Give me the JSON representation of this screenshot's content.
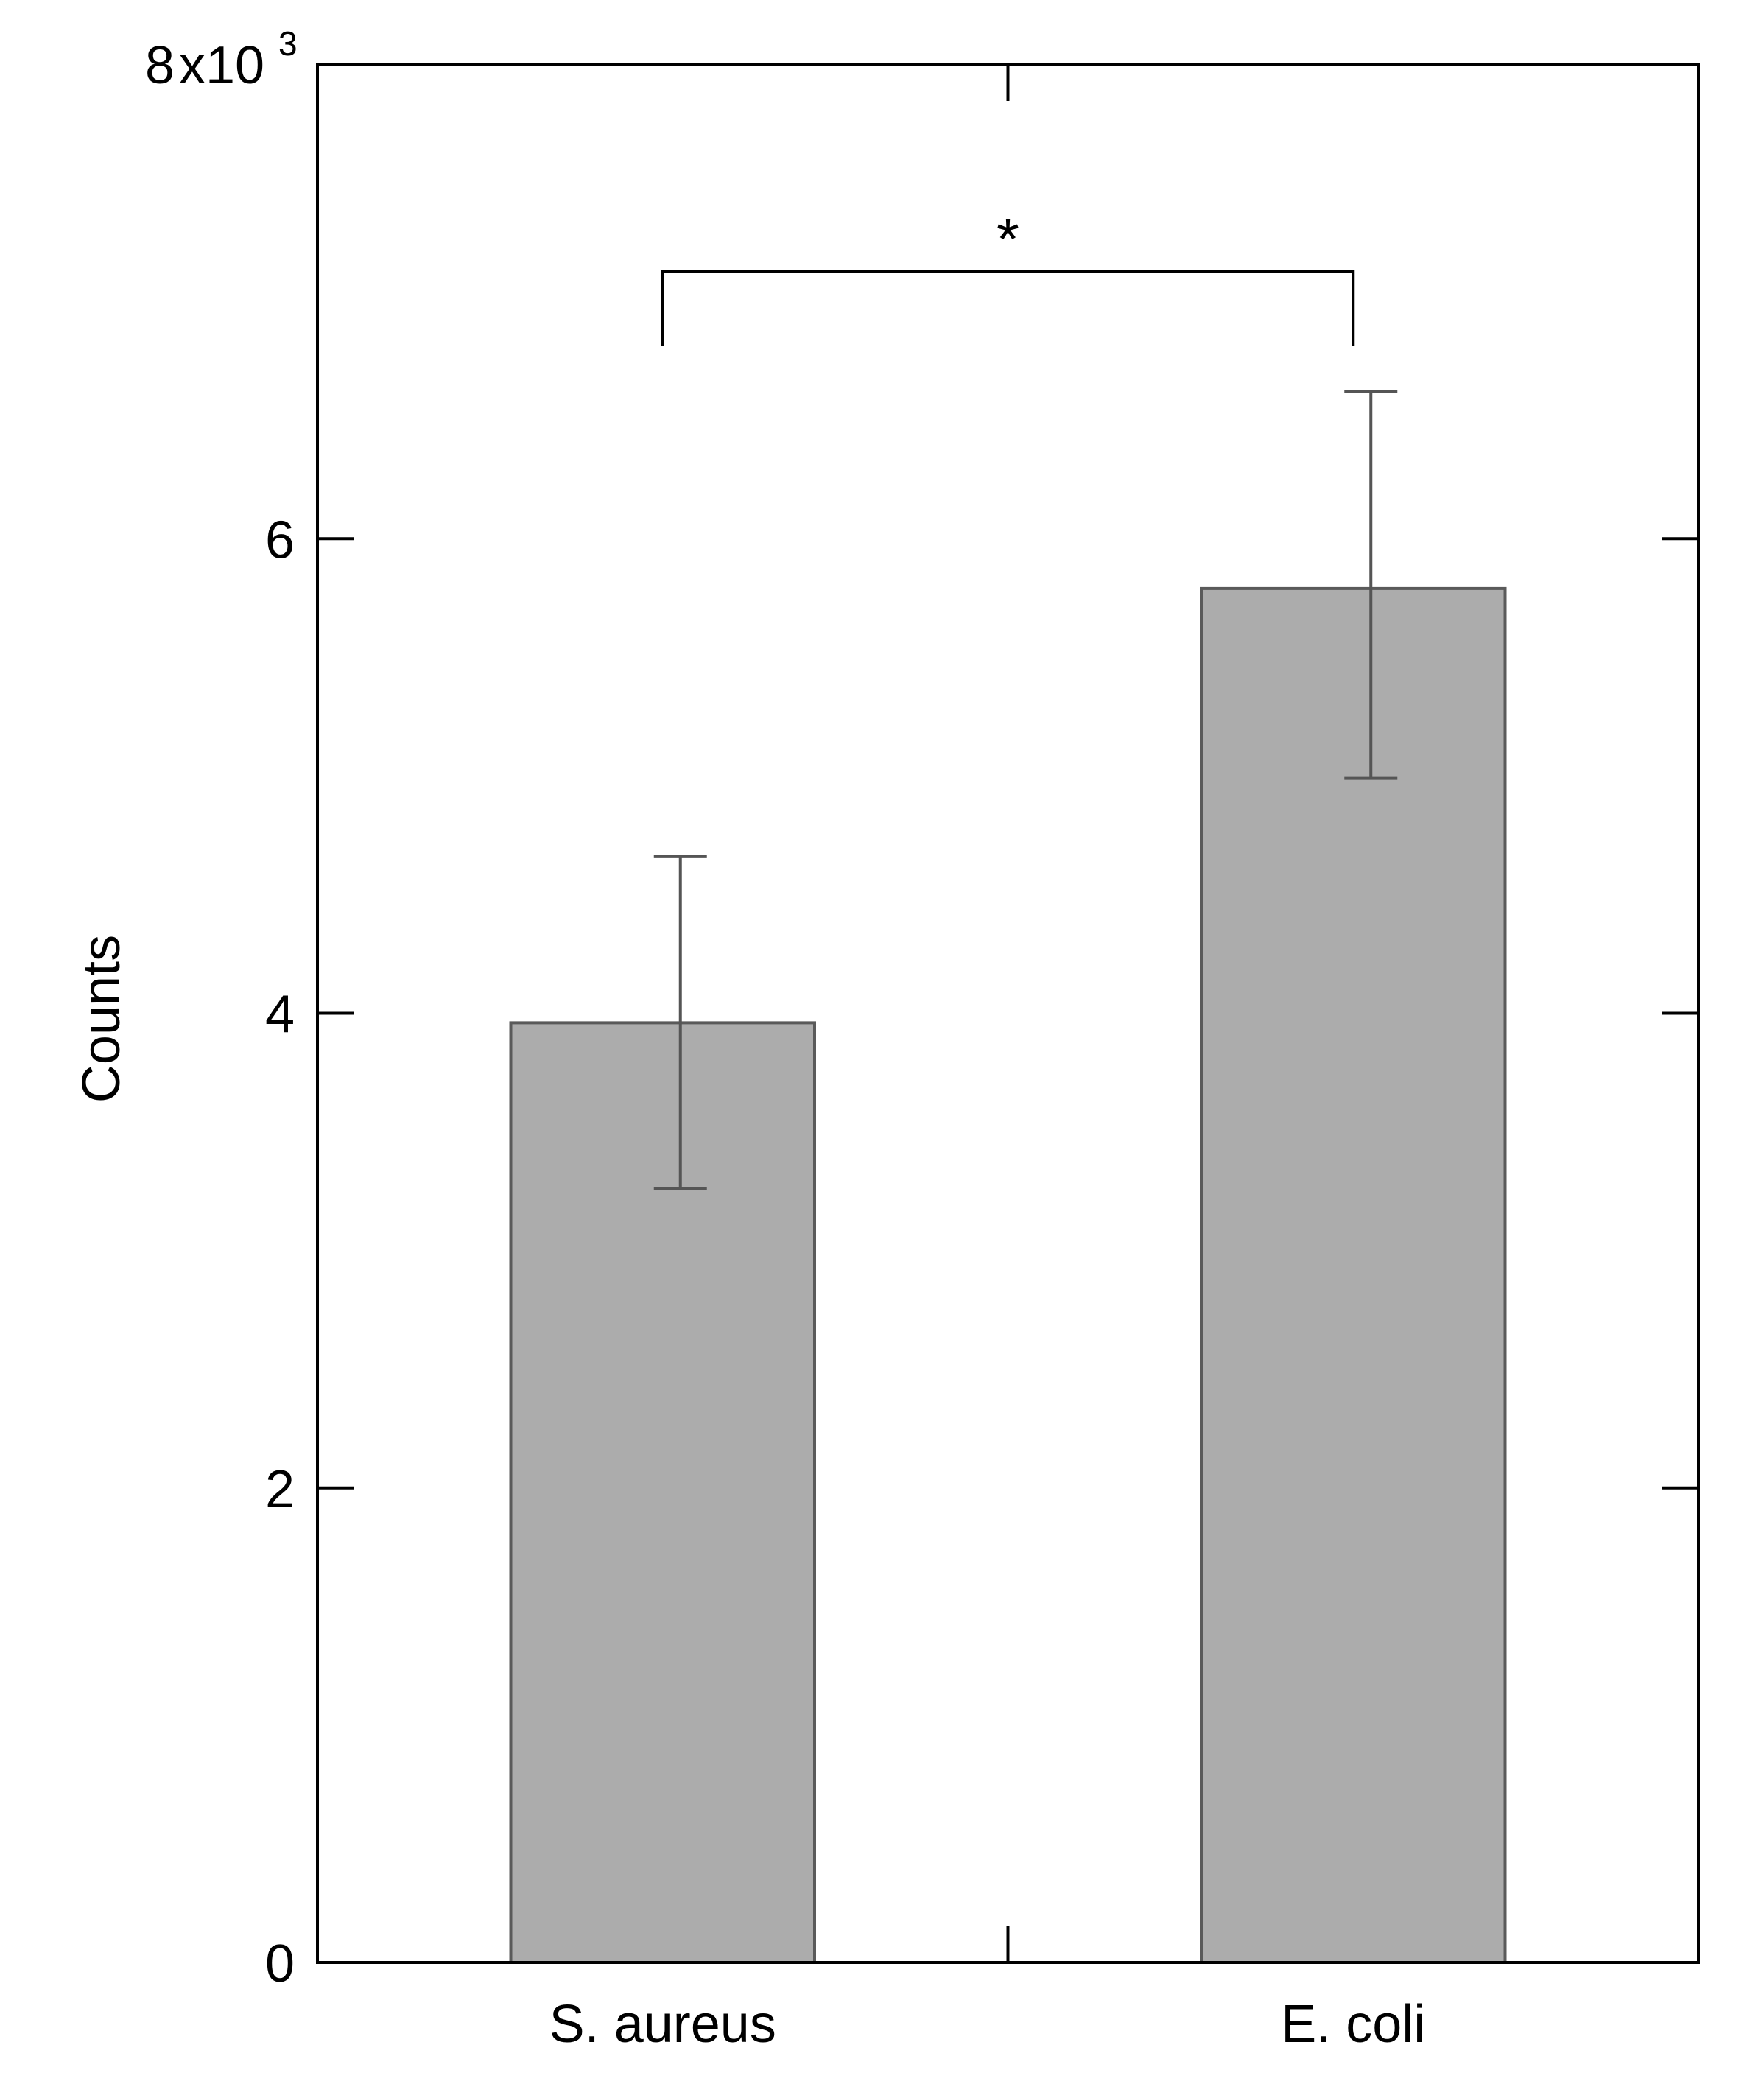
{
  "chart_data": {
    "type": "bar",
    "title": "",
    "xlabel": "",
    "ylabel": "Counts",
    "y_exponent_label": "x10",
    "y_exponent_power": "3",
    "categories": [
      "S. aureus",
      "E. coli"
    ],
    "values": [
      3.96,
      5.79
    ],
    "error_high": [
      4.66,
      6.62
    ],
    "error_low": [
      3.26,
      4.99
    ],
    "ylim": [
      0,
      8
    ],
    "yticks": [
      0,
      2,
      4,
      6,
      8
    ],
    "ytick_labels": [
      "0",
      "2",
      "4",
      "6",
      "8"
    ],
    "grid": false,
    "bar_color": "#acacac",
    "bar_edge_color": "#5a5a5a",
    "significance": {
      "between": [
        0,
        1
      ],
      "label": "*"
    }
  }
}
